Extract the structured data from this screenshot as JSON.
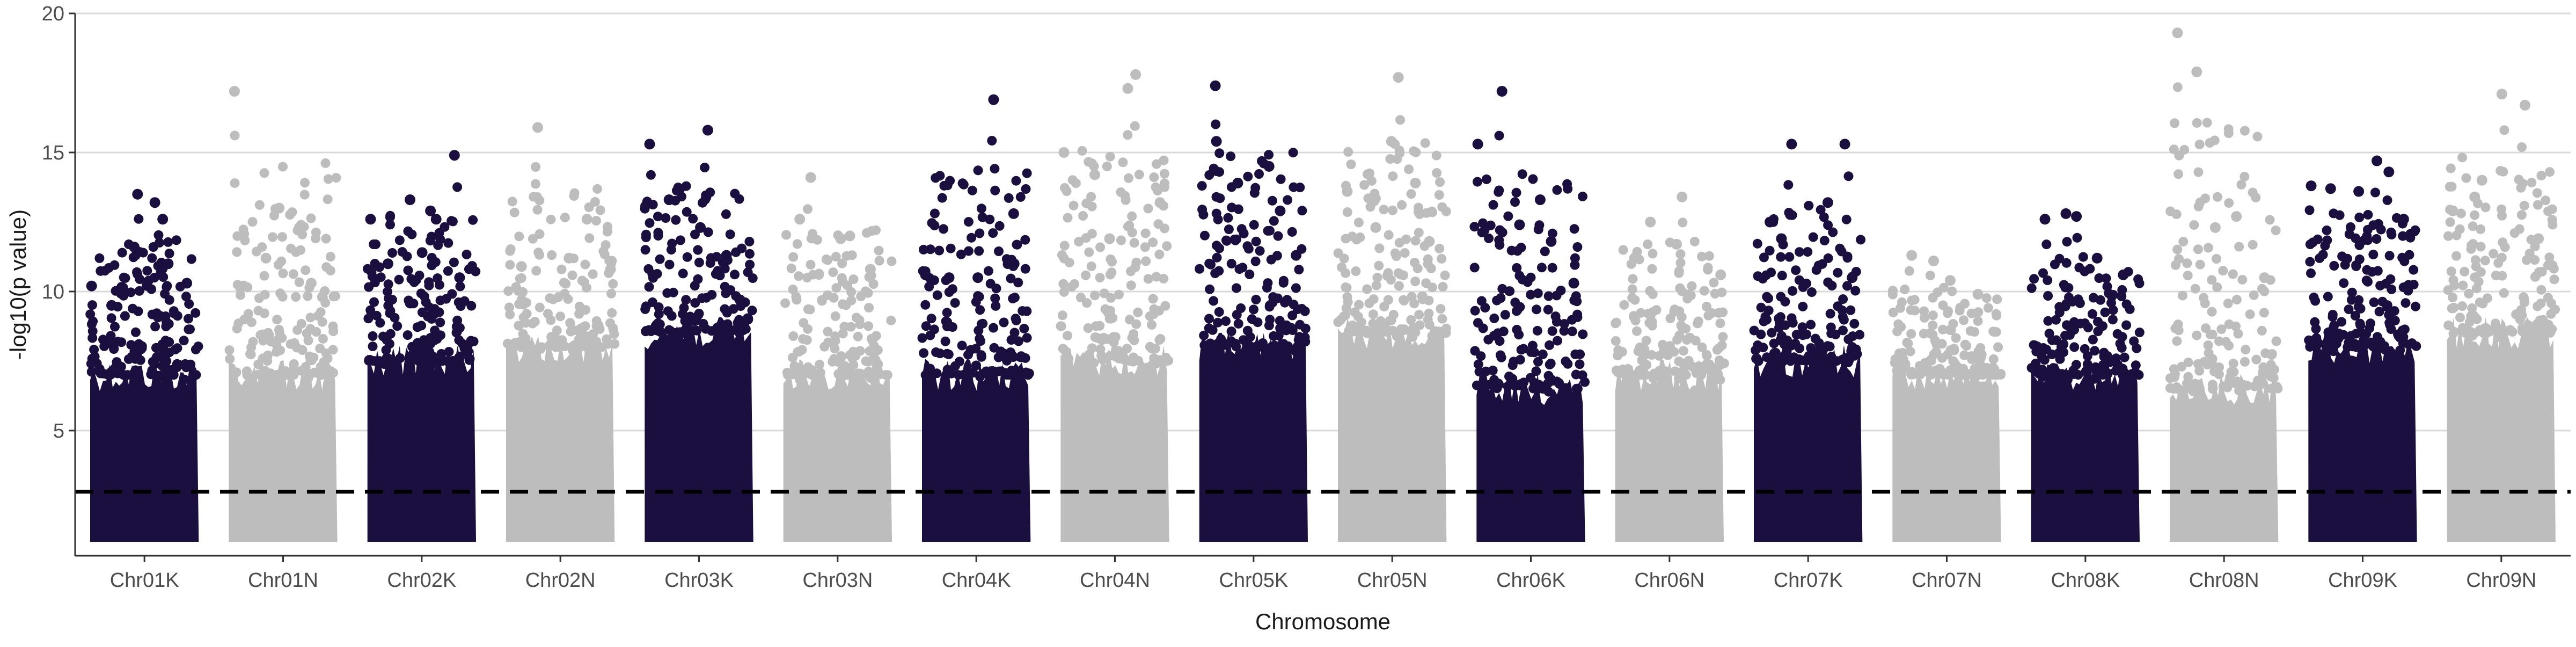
{
  "chart_data": {
    "type": "scatter",
    "subtype": "manhattan",
    "xlabel": "Chromosome",
    "ylabel": "-log10(p value)",
    "ylim": [
      0.5,
      20
    ],
    "yticks": [
      5,
      10,
      15,
      20
    ],
    "threshold_line": 2.8,
    "grid": "horizontal major gridlines only",
    "legend": "none",
    "colors": {
      "dark": "#1b0f40",
      "light": "#bdbdbd",
      "threshold": "#000000",
      "grid": "#d9d9d9"
    },
    "series": [
      {
        "chromosome": "Chr01K",
        "color_group": "dark",
        "bulk_top": 7.0,
        "max": 13.5,
        "peaks": [
          10.2,
          9.5,
          11.6,
          13.5,
          13.2,
          12.6,
          11.0,
          10.3
        ]
      },
      {
        "chromosome": "Chr01N",
        "color_group": "light",
        "bulk_top": 7.0,
        "max": 17.2,
        "peaks": [
          17.2,
          11.2,
          13.0,
          12.3,
          10.3,
          9.8
        ]
      },
      {
        "chromosome": "Chr02K",
        "color_group": "dark",
        "bulk_top": 7.5,
        "max": 14.9,
        "peaks": [
          12.6,
          11.0,
          13.3,
          11.4,
          12.9,
          12.6,
          14.9,
          10.5
        ]
      },
      {
        "chromosome": "Chr02N",
        "color_group": "light",
        "bulk_top": 8.0,
        "max": 15.9,
        "peaks": [
          10.9,
          15.9,
          11.2,
          12.6,
          10.8
        ]
      },
      {
        "chromosome": "Chr03K",
        "color_group": "dark",
        "bulk_top": 8.5,
        "max": 15.8,
        "peaks": [
          15.3,
          13.3,
          12.3,
          15.8,
          11.3,
          9.7
        ]
      },
      {
        "chromosome": "Chr03N",
        "color_group": "light",
        "bulk_top": 7.0,
        "max": 14.1,
        "peaks": [
          12.6,
          14.1,
          11.9,
          12.0,
          10.8
        ]
      },
      {
        "chromosome": "Chr04K",
        "color_group": "dark",
        "bulk_top": 7.0,
        "max": 16.9,
        "peaks": [
          10.6,
          10.5,
          10.5,
          16.9,
          12.8,
          11.0
        ]
      },
      {
        "chromosome": "Chr04N",
        "color_group": "light",
        "bulk_top": 7.5,
        "max": 17.8,
        "peaks": [
          15.0,
          14.2,
          11.9,
          17.3,
          17.8,
          13.2
        ]
      },
      {
        "chromosome": "Chr05K",
        "color_group": "dark",
        "bulk_top": 8.0,
        "max": 17.4,
        "peaks": [
          17.4,
          15.4,
          13.9,
          14.5,
          12.9,
          11.3
        ]
      },
      {
        "chromosome": "Chr05N",
        "color_group": "light",
        "bulk_top": 8.5,
        "max": 17.7,
        "peaks": [
          13.6,
          12.3,
          15.4,
          17.7,
          13.9,
          11.8
        ]
      },
      {
        "chromosome": "Chr06K",
        "color_group": "dark",
        "bulk_top": 6.5,
        "max": 17.2,
        "peaks": [
          15.3,
          17.2,
          12.4,
          13.3,
          11.8,
          10.3
        ]
      },
      {
        "chromosome": "Chr06N",
        "color_group": "light",
        "bulk_top": 7.0,
        "max": 13.4,
        "peaks": [
          11.2,
          12.5,
          11.7,
          13.4,
          10.6
        ]
      },
      {
        "chromosome": "Chr07K",
        "color_group": "dark",
        "bulk_top": 7.5,
        "max": 15.3,
        "peaks": [
          12.5,
          11.9,
          15.3,
          13.2,
          15.3,
          10.5
        ]
      },
      {
        "chromosome": "Chr07N",
        "color_group": "light",
        "bulk_top": 7.0,
        "max": 11.3,
        "peaks": [
          11.3,
          11.1,
          10.4,
          9.9
        ]
      },
      {
        "chromosome": "Chr08K",
        "color_group": "dark",
        "bulk_top": 7.0,
        "max": 12.8,
        "peaks": [
          12.6,
          12.8,
          12.7,
          11.2,
          10.6
        ]
      },
      {
        "chromosome": "Chr08N",
        "color_group": "light",
        "bulk_top": 6.5,
        "max": 19.3,
        "peaks": [
          19.3,
          17.9,
          12.3,
          12.7,
          10.5
        ]
      },
      {
        "chromosome": "Chr09K",
        "color_group": "dark",
        "bulk_top": 8.0,
        "max": 14.7,
        "peaks": [
          13.8,
          13.7,
          13.6,
          14.7,
          14.3,
          12.6
        ]
      },
      {
        "chromosome": "Chr09N",
        "color_group": "light",
        "bulk_top": 8.5,
        "max": 17.1,
        "peaks": [
          12.9,
          13.4,
          14.0,
          17.1,
          16.7,
          11.9
        ]
      }
    ]
  }
}
